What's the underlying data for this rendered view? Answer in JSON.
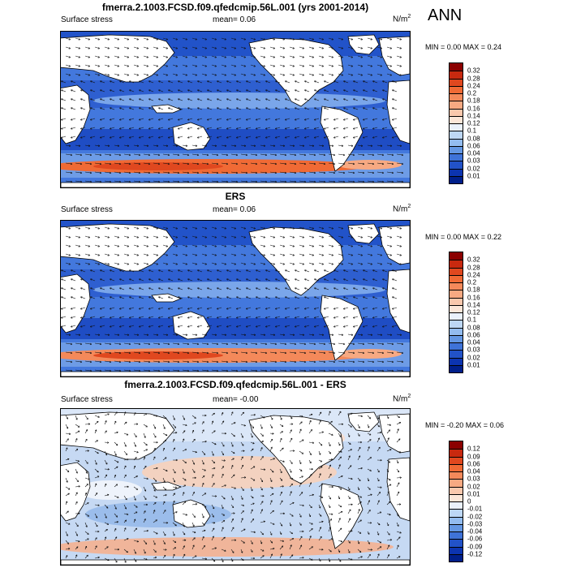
{
  "season": "ANN",
  "panels": [
    {
      "title": "fmerra.2.1003.FCSD.f09.qfedcmip.56L.001 (yrs 2001-2014)",
      "variable": "Surface stress",
      "mean_label": "mean=",
      "mean_value": "0.06",
      "units": "N/m",
      "units_sup": "2",
      "minmax": "MIN =  0.00 MAX =   0.24",
      "colorbar_labels": [
        "0.32",
        "0.28",
        "0.24",
        "0.2",
        "0.18",
        "0.16",
        "0.14",
        "0.12",
        "0.1",
        "0.08",
        "0.06",
        "0.04",
        "0.03",
        "0.02",
        "0.01"
      ],
      "colorbar_colors": [
        "#8b0000",
        "#c8290f",
        "#e0481f",
        "#f06a35",
        "#f4895a",
        "#f7a982",
        "#f9c8ad",
        "#fbe6d8",
        "#eaf1fb",
        "#bdd7f5",
        "#93bcef",
        "#6497e3",
        "#3f73d8",
        "#2252c8",
        "#0c34b0",
        "#001f8a"
      ],
      "map_style": "model"
    },
    {
      "title": "ERS",
      "variable": "Surface stress",
      "mean_label": "mean=",
      "mean_value": "0.06",
      "units": "N/m",
      "units_sup": "2",
      "minmax": "MIN =  0.00 MAX =   0.22",
      "colorbar_labels": [
        "0.32",
        "0.28",
        "0.24",
        "0.2",
        "0.18",
        "0.16",
        "0.14",
        "0.12",
        "0.1",
        "0.08",
        "0.06",
        "0.04",
        "0.03",
        "0.02",
        "0.01"
      ],
      "colorbar_colors": [
        "#8b0000",
        "#c8290f",
        "#e0481f",
        "#f06a35",
        "#f4895a",
        "#f7a982",
        "#f9c8ad",
        "#fbe6d8",
        "#eaf1fb",
        "#bdd7f5",
        "#93bcef",
        "#6497e3",
        "#3f73d8",
        "#2252c8",
        "#0c34b0",
        "#001f8a"
      ],
      "map_style": "obs"
    },
    {
      "title": "fmerra.2.1003.FCSD.f09.qfedcmip.56L.001 - ERS",
      "variable": "Surface stress",
      "mean_label": "mean=",
      "mean_value": "-0.00",
      "units": "N/m",
      "units_sup": "2",
      "minmax": "MIN =  -0.20 MAX =   0.06",
      "colorbar_labels": [
        "0.12",
        "0.09",
        "0.06",
        "0.04",
        "0.03",
        "0.02",
        "0.01",
        "0",
        "-0.01",
        "-0.02",
        "-0.03",
        "-0.04",
        "-0.06",
        "-0.09",
        "-0.12"
      ],
      "colorbar_colors": [
        "#8b0000",
        "#c8290f",
        "#e0481f",
        "#f06a35",
        "#f4895a",
        "#f7a982",
        "#f9c8ad",
        "#fbe6d8",
        "#eaf1fb",
        "#bdd7f5",
        "#93bcef",
        "#6497e3",
        "#3f73d8",
        "#2252c8",
        "#0c34b0",
        "#001f8a"
      ],
      "map_style": "diff"
    }
  ]
}
